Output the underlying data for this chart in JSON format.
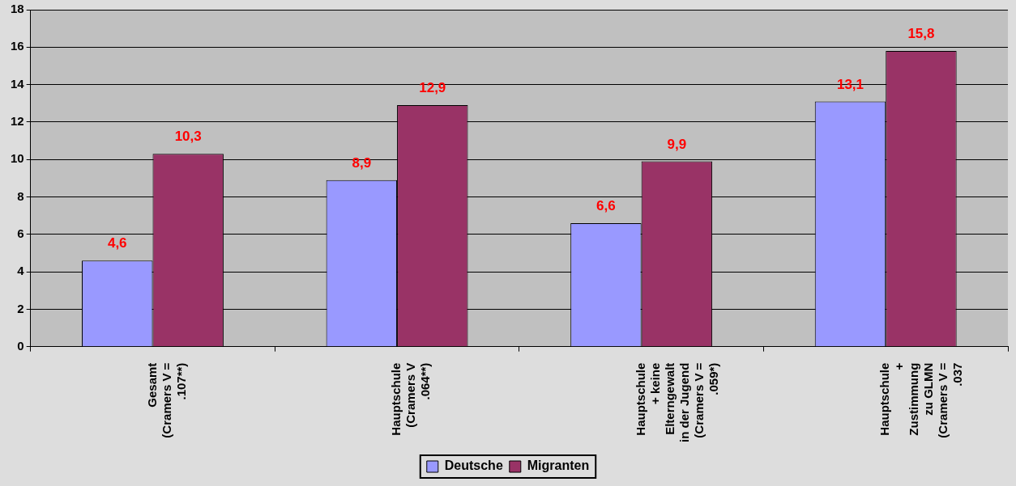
{
  "chart_data": {
    "type": "bar",
    "categories": [
      "Gesamt (Cramers V = .107**)",
      "Hauptschule (Cramers V .064**)",
      "Hauptschule + keine Elterngewalt in der Jugend (Cramers V = .059*)",
      "Hauptschule + Zustimmung zu GLMN (Cramers V = .037"
    ],
    "series": [
      {
        "name": "Deutsche",
        "color": "#9999ff",
        "values": [
          4.6,
          8.9,
          6.6,
          13.1
        ],
        "value_labels": [
          "4,6",
          "8,9",
          "6,6",
          "13,1"
        ]
      },
      {
        "name": "Migranten",
        "color": "#993366",
        "values": [
          10.3,
          12.9,
          9.9,
          15.8
        ],
        "value_labels": [
          "10,3",
          "12,9",
          "9,9",
          "15,8"
        ]
      }
    ],
    "ylim": [
      0,
      18
    ],
    "yticks": [
      0,
      2,
      4,
      6,
      8,
      10,
      12,
      14,
      16,
      18
    ],
    "grid": "y",
    "legend": "bottom"
  }
}
